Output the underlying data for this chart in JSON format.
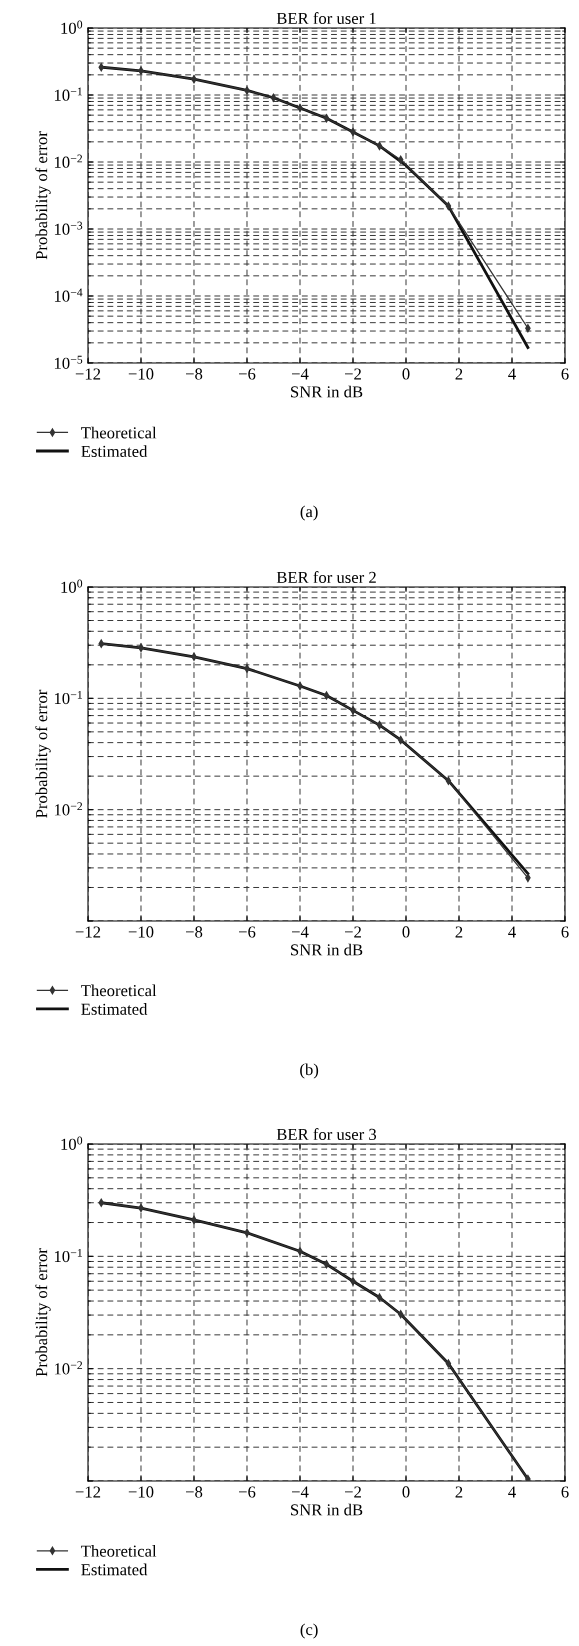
{
  "chart_data": [
    {
      "type": "line",
      "title": "BER for user 1",
      "xlabel": "SNR in dB",
      "ylabel": "Probability of error",
      "log": "y",
      "grid": true,
      "legend": "bottom left",
      "annotations": [
        "(a)"
      ],
      "xlim": [
        -12,
        6
      ],
      "xticks": [
        -12,
        -10,
        -8,
        -6,
        -4,
        -2,
        0,
        2,
        4,
        6
      ],
      "ylim": [
        1e-05,
        1
      ],
      "yticks": [
        {
          "value": 1,
          "label": "10$^{0}$"
        },
        {
          "value": 0.1,
          "label": "10$^{−1}$"
        },
        {
          "value": 0.01,
          "label": "10$^{−2}$"
        },
        {
          "value": 0.001,
          "label": "10$^{−3}$"
        },
        {
          "value": 0.0001,
          "label": "10$^{−4}$"
        },
        {
          "value": 1e-05,
          "label": "10$^{−5}$"
        }
      ],
      "series": [
        {
          "name": "Theoretical",
          "color": "#333333",
          "marker": "diamond",
          "x": [
            -11.5,
            -10,
            -8,
            -6,
            -5,
            -4,
            -3,
            -2,
            -1,
            -0.2,
            1.6,
            4.6
          ],
          "values": [
            0.26,
            0.23,
            0.172,
            0.117,
            0.091,
            0.064,
            0.045,
            0.028,
            0.0174,
            0.0108,
            0.0022,
            3.3e-05
          ]
        },
        {
          "name": "Estimated",
          "color": "#111111",
          "x": [
            -11.5,
            -10,
            -8,
            -6,
            -5,
            -4,
            -3,
            -2,
            -1,
            0,
            1.6,
            4.6
          ],
          "values": [
            0.26,
            0.23,
            0.172,
            0.117,
            0.091,
            0.064,
            0.045,
            0.028,
            0.0174,
            0.0089,
            0.0022,
            1.7e-05
          ]
        }
      ]
    },
    {
      "type": "line",
      "title": "BER for user 2",
      "xlabel": "SNR in dB",
      "ylabel": "Probability of error",
      "log": "y",
      "grid": true,
      "legend": "bottom left",
      "annotations": [
        "(b)"
      ],
      "xlim": [
        -12,
        6
      ],
      "xticks": [
        -12,
        -10,
        -8,
        -6,
        -4,
        -2,
        0,
        2,
        4,
        6
      ],
      "ylim": [
        0.001,
        1
      ],
      "yticks": [
        {
          "value": 1,
          "label": "10$^{0}$"
        },
        {
          "value": 0.1,
          "label": "10$^{−1}$"
        },
        {
          "value": 0.01,
          "label": "10$^{−2}$"
        },
        {
          "value": 0.001,
          "label": null
        }
      ],
      "series": [
        {
          "name": "Theoretical",
          "color": "#333333",
          "marker": "diamond",
          "x": [
            -11.5,
            -10,
            -8,
            -6,
            -4,
            -3,
            -2,
            -1,
            -0.2,
            1.6,
            4.6
          ],
          "values": [
            0.31,
            0.284,
            0.236,
            0.185,
            0.129,
            0.106,
            0.078,
            0.0575,
            0.0423,
            0.0182,
            0.00244
          ]
        },
        {
          "name": "Estimated",
          "color": "#111111",
          "x": [
            -11.5,
            -10,
            -8,
            -6,
            -4,
            -3,
            -2,
            -1,
            -0.2,
            1.6,
            4.6
          ],
          "values": [
            0.31,
            0.284,
            0.236,
            0.185,
            0.129,
            0.106,
            0.078,
            0.0575,
            0.0423,
            0.0182,
            0.00267
          ]
        }
      ]
    },
    {
      "type": "line",
      "title": "BER for user 3",
      "xlabel": "SNR in dB",
      "ylabel": "Probability of error",
      "log": "y",
      "grid": true,
      "legend": "bottom left",
      "annotations": [
        "(c)"
      ],
      "xlim": [
        -12,
        6
      ],
      "xticks": [
        -12,
        -10,
        -8,
        -6,
        -4,
        -2,
        0,
        2,
        4,
        6
      ],
      "ylim": [
        0.001,
        1
      ],
      "yticks": [
        {
          "value": 1,
          "label": "10$^{0}$"
        },
        {
          "value": 0.1,
          "label": "10$^{−1}$"
        },
        {
          "value": 0.01,
          "label": "10$^{−2}$"
        },
        {
          "value": 0.001,
          "label": null
        }
      ],
      "series": [
        {
          "name": "Theoretical",
          "color": "#333333",
          "marker": "diamond",
          "x": [
            -11.5,
            -10,
            -8,
            -6,
            -4,
            -3,
            -2,
            -1,
            -0.2,
            1.6,
            4.6
          ],
          "values": [
            0.3,
            0.269,
            0.211,
            0.162,
            0.111,
            0.085,
            0.06,
            0.043,
            0.0305,
            0.0111,
            0.00104
          ]
        },
        {
          "name": "Estimated",
          "color": "#111111",
          "x": [
            -11.5,
            -10,
            -8,
            -6,
            -4,
            -3,
            -2,
            -1,
            -0.2,
            1.6,
            4.6
          ],
          "values": [
            0.3,
            0.269,
            0.211,
            0.162,
            0.111,
            0.085,
            0.06,
            0.043,
            0.0305,
            0.0111,
            0.00104
          ]
        }
      ]
    }
  ]
}
